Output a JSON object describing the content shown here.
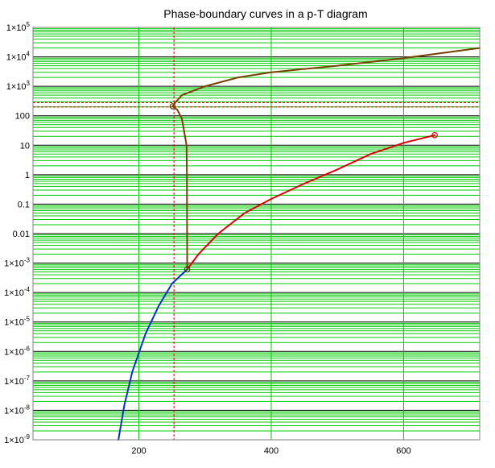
{
  "chart_data": {
    "type": "line",
    "title": "Phase-boundary curves in a p-T diagram",
    "xlabel": "",
    "ylabel": "",
    "x_scale": "linear",
    "y_scale": "log",
    "xlim": [
      40,
      715
    ],
    "ylim_exp": [
      -9,
      5
    ],
    "x_ticks": [
      {
        "value": 200,
        "label": "200"
      },
      {
        "value": 400,
        "label": "400"
      },
      {
        "value": 600,
        "label": "600"
      }
    ],
    "y_ticks": [
      {
        "exp": 5,
        "base": "1×10",
        "sup": "5"
      },
      {
        "exp": 4,
        "base": "1×10",
        "sup": "4"
      },
      {
        "exp": 3,
        "base": "1×10",
        "sup": "3"
      },
      {
        "exp": 2,
        "base": "100",
        "sup": ""
      },
      {
        "exp": 1,
        "base": "10",
        "sup": ""
      },
      {
        "exp": 0,
        "base": "1",
        "sup": ""
      },
      {
        "exp": -1,
        "base": "0.1",
        "sup": ""
      },
      {
        "exp": -2,
        "base": "0.01",
        "sup": ""
      },
      {
        "exp": -3,
        "base": "1×10",
        "sup": "-3"
      },
      {
        "exp": -4,
        "base": "1×10",
        "sup": "-4"
      },
      {
        "exp": -5,
        "base": "1×10",
        "sup": "-5"
      },
      {
        "exp": -6,
        "base": "1×10",
        "sup": "-6"
      },
      {
        "exp": -7,
        "base": "1×10",
        "sup": "-7"
      },
      {
        "exp": -8,
        "base": "1×10",
        "sup": "-8"
      },
      {
        "exp": -9,
        "base": "1×10",
        "sup": "-9"
      }
    ],
    "grid": true,
    "colors": {
      "major_grid": "#000000",
      "minor_grid": "#00cc00",
      "vertical_grid": "#00cc00",
      "reference": "#cc0000",
      "frame": "#808080"
    },
    "reference_lines": {
      "vertical_x": 253,
      "horizontal_y": [
        200,
        280
      ]
    },
    "series": [
      {
        "id": "sublimation",
        "color": "#0033cc",
        "points": [
          [
            169,
            1e-09
          ],
          [
            178,
            1.5e-08
          ],
          [
            190,
            2e-07
          ],
          [
            210,
            4e-06
          ],
          [
            230,
            3.5e-05
          ],
          [
            250,
            0.0002
          ],
          [
            273,
            0.00061
          ]
        ]
      },
      {
        "id": "vaporization",
        "color": "#dd0000",
        "points": [
          [
            273,
            0.00061
          ],
          [
            290,
            0.002
          ],
          [
            320,
            0.01
          ],
          [
            360,
            0.05
          ],
          [
            400,
            0.15
          ],
          [
            450,
            0.5
          ],
          [
            500,
            1.5
          ],
          [
            550,
            5
          ],
          [
            600,
            12
          ],
          [
            647,
            22
          ]
        ]
      },
      {
        "id": "melting",
        "color": "#7a4000",
        "points": [
          [
            273,
            0.00061
          ],
          [
            272.5,
            1
          ],
          [
            272,
            10
          ],
          [
            265,
            80
          ],
          [
            258,
            160
          ],
          [
            251,
            210
          ],
          [
            256,
            300
          ],
          [
            265,
            500
          ],
          [
            300,
            1000
          ],
          [
            350,
            2000
          ],
          [
            400,
            3000
          ],
          [
            500,
            5000
          ],
          [
            600,
            9000
          ],
          [
            715,
            20000
          ]
        ]
      }
    ],
    "markers": [
      {
        "x": 273,
        "y": 0.00061,
        "color": "#404000"
      },
      {
        "x": 251,
        "y": 210,
        "color": "#7a4000"
      },
      {
        "x": 647,
        "y": 22,
        "color": "#dd0000"
      }
    ]
  }
}
